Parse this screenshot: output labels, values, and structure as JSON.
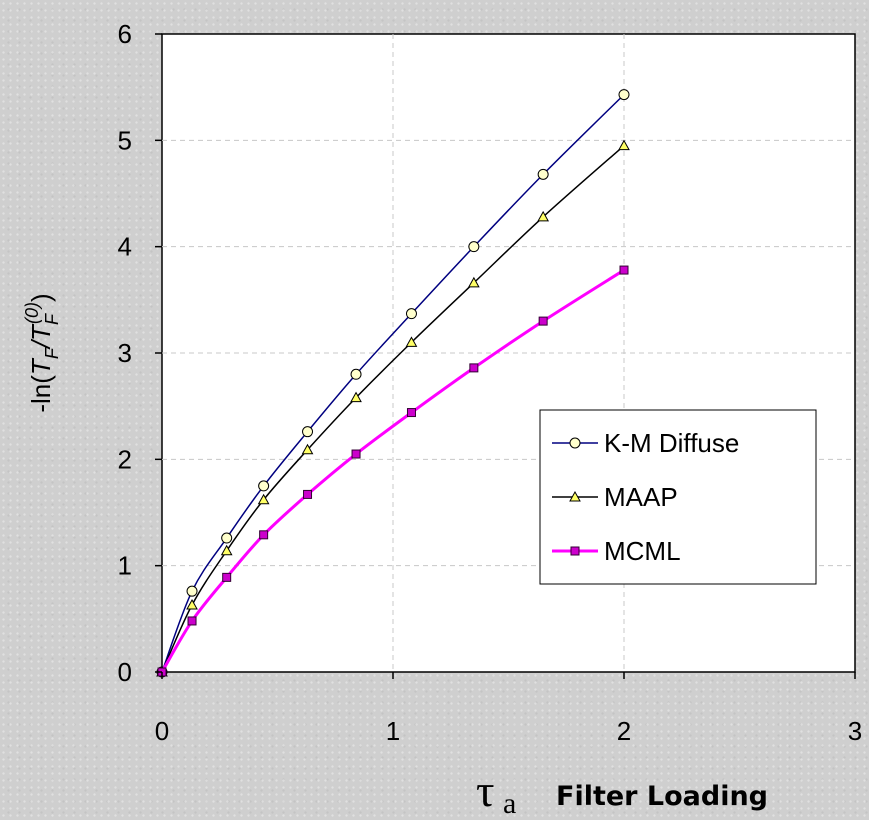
{
  "chart_data": {
    "type": "line",
    "title": "",
    "x_label": {
      "symbol": "τ",
      "subscript": "a",
      "text": "Filter Loading"
    },
    "y_label": {
      "prefix": "-ln(",
      "t1": "T",
      "t1_sub": "F",
      "slash": "/",
      "t2": "T",
      "t2_sub": "F",
      "t2_sup": "(0)",
      "suffix": ")"
    },
    "xlim": [
      0,
      3
    ],
    "ylim": [
      0,
      6
    ],
    "x_ticks": [
      "0",
      "1",
      "2",
      "3"
    ],
    "y_ticks": [
      "0",
      "1",
      "2",
      "3",
      "4",
      "5",
      "6"
    ],
    "grid": "dashed gridlines at major ticks",
    "legend_position": "right-center",
    "series": [
      {
        "name": "K-M Diffuse",
        "marker": "circle",
        "line_color": "#000080",
        "marker_fill": "#ffffcc",
        "x": [
          0,
          0.13,
          0.28,
          0.44,
          0.63,
          0.84,
          1.08,
          1.35,
          1.65,
          2.0
        ],
        "y": [
          0,
          0.76,
          1.26,
          1.75,
          2.26,
          2.8,
          3.37,
          4.0,
          4.68,
          5.43
        ]
      },
      {
        "name": "MAAP",
        "marker": "triangle",
        "line_color": "#000000",
        "marker_fill": "#ffff66",
        "x": [
          0,
          0.13,
          0.28,
          0.44,
          0.63,
          0.84,
          1.08,
          1.35,
          1.65,
          2.0
        ],
        "y": [
          0,
          0.63,
          1.14,
          1.62,
          2.09,
          2.58,
          3.1,
          3.66,
          4.28,
          4.95
        ]
      },
      {
        "name": "MCML",
        "marker": "square",
        "line_color": "#ff00ff",
        "marker_fill": "#cc00cc",
        "x": [
          0,
          0.13,
          0.28,
          0.44,
          0.63,
          0.84,
          1.08,
          1.35,
          1.65,
          2.0
        ],
        "y": [
          0,
          0.48,
          0.89,
          1.29,
          1.67,
          2.05,
          2.44,
          2.86,
          3.3,
          3.78
        ]
      }
    ]
  }
}
